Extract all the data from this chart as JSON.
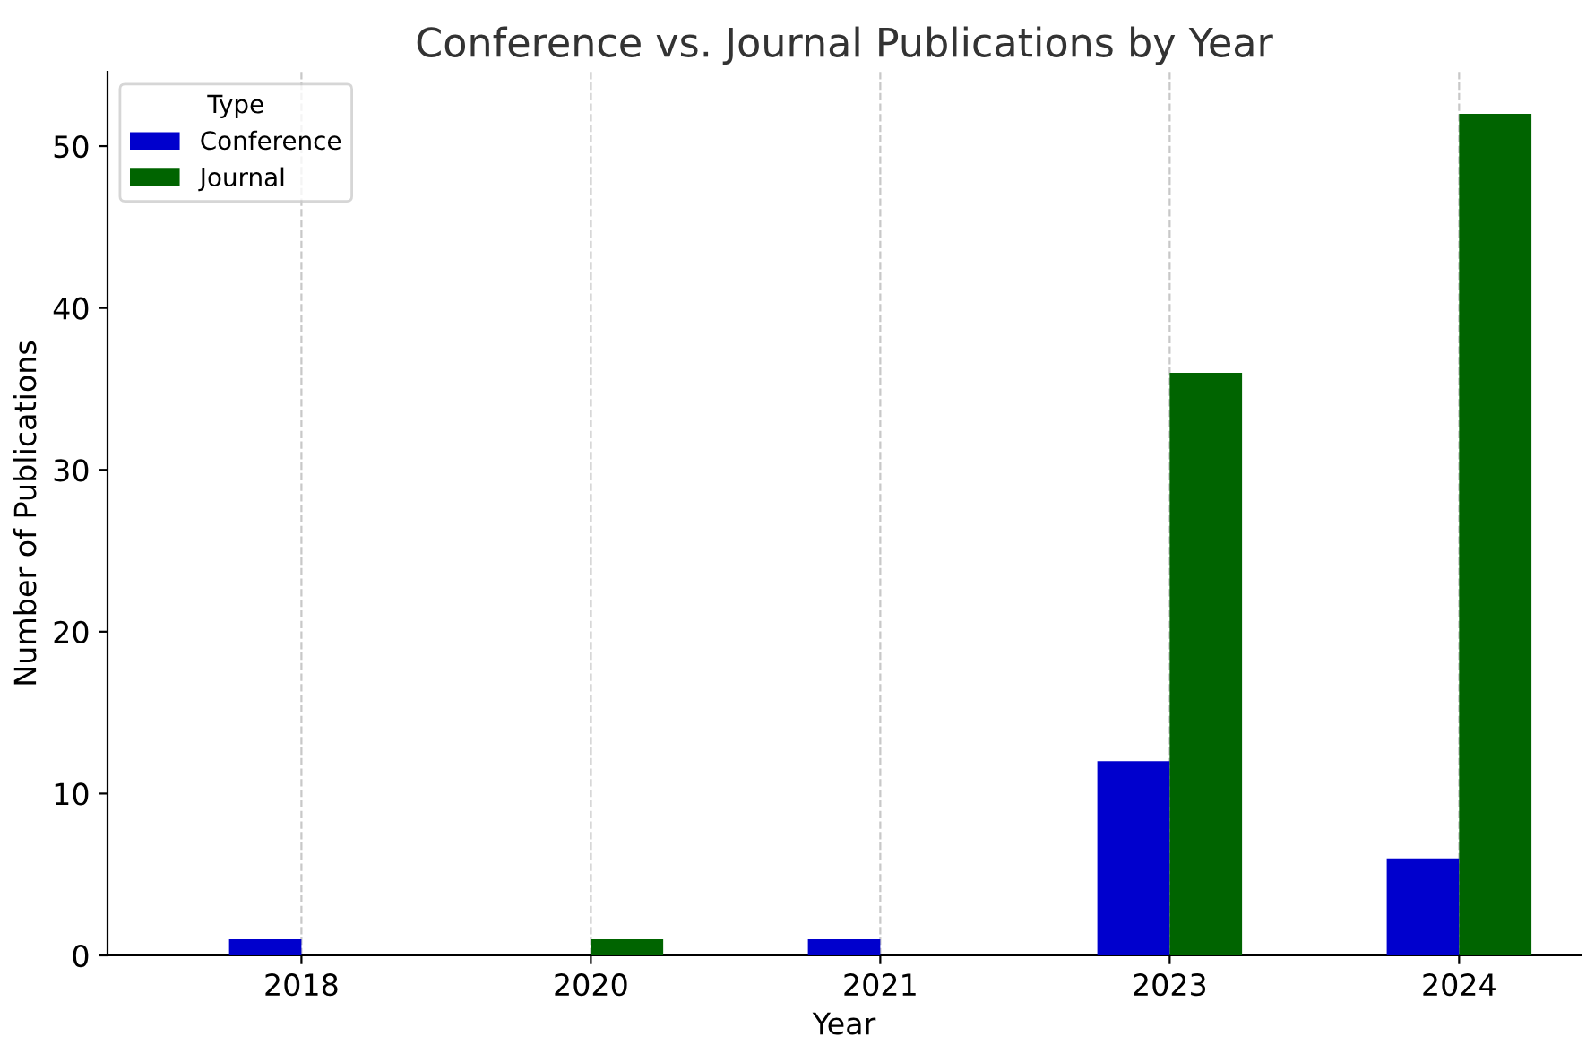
{
  "chart_data": {
    "type": "bar",
    "title": "Conference vs. Journal Publications by Year",
    "xlabel": "Year",
    "ylabel": "Number of Publications",
    "legend_title": "Type",
    "categories": [
      "2018",
      "2020",
      "2021",
      "2023",
      "2024"
    ],
    "series": [
      {
        "name": "Conference",
        "color": "#0000cd",
        "values": [
          1,
          0,
          1,
          12,
          6
        ]
      },
      {
        "name": "Journal",
        "color": "#006400",
        "values": [
          0,
          1,
          0,
          36,
          52
        ]
      }
    ],
    "ylim": [
      0,
      54.6
    ],
    "yticks": [
      0,
      10,
      20,
      30,
      40,
      50
    ],
    "grid": "x",
    "legend": "top left"
  }
}
